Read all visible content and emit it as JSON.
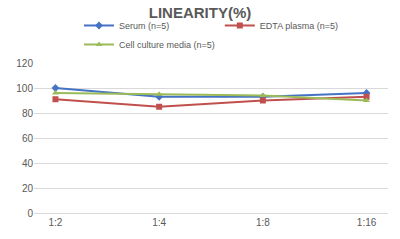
{
  "chart_data": {
    "type": "line",
    "title": "LINEARITY(%)",
    "categories": [
      "1:2",
      "1:4",
      "1:8",
      "1:16"
    ],
    "series": [
      {
        "name": "Serum (n=5)",
        "color": "#4472c4",
        "marker": "diamond",
        "values": [
          100,
          93,
          93,
          96
        ]
      },
      {
        "name": "EDTA plasma (n=5)",
        "color": "#c0504d",
        "marker": "square",
        "values": [
          91,
          85,
          90,
          93
        ]
      },
      {
        "name": "Cell culture media (n=5)",
        "color": "#9bbb59",
        "marker": "triangle",
        "values": [
          96,
          95,
          94,
          90
        ]
      }
    ],
    "ylim": [
      0,
      120
    ],
    "yticks": [
      0,
      20,
      40,
      60,
      80,
      100,
      120
    ],
    "grid": true,
    "legend": "top"
  }
}
